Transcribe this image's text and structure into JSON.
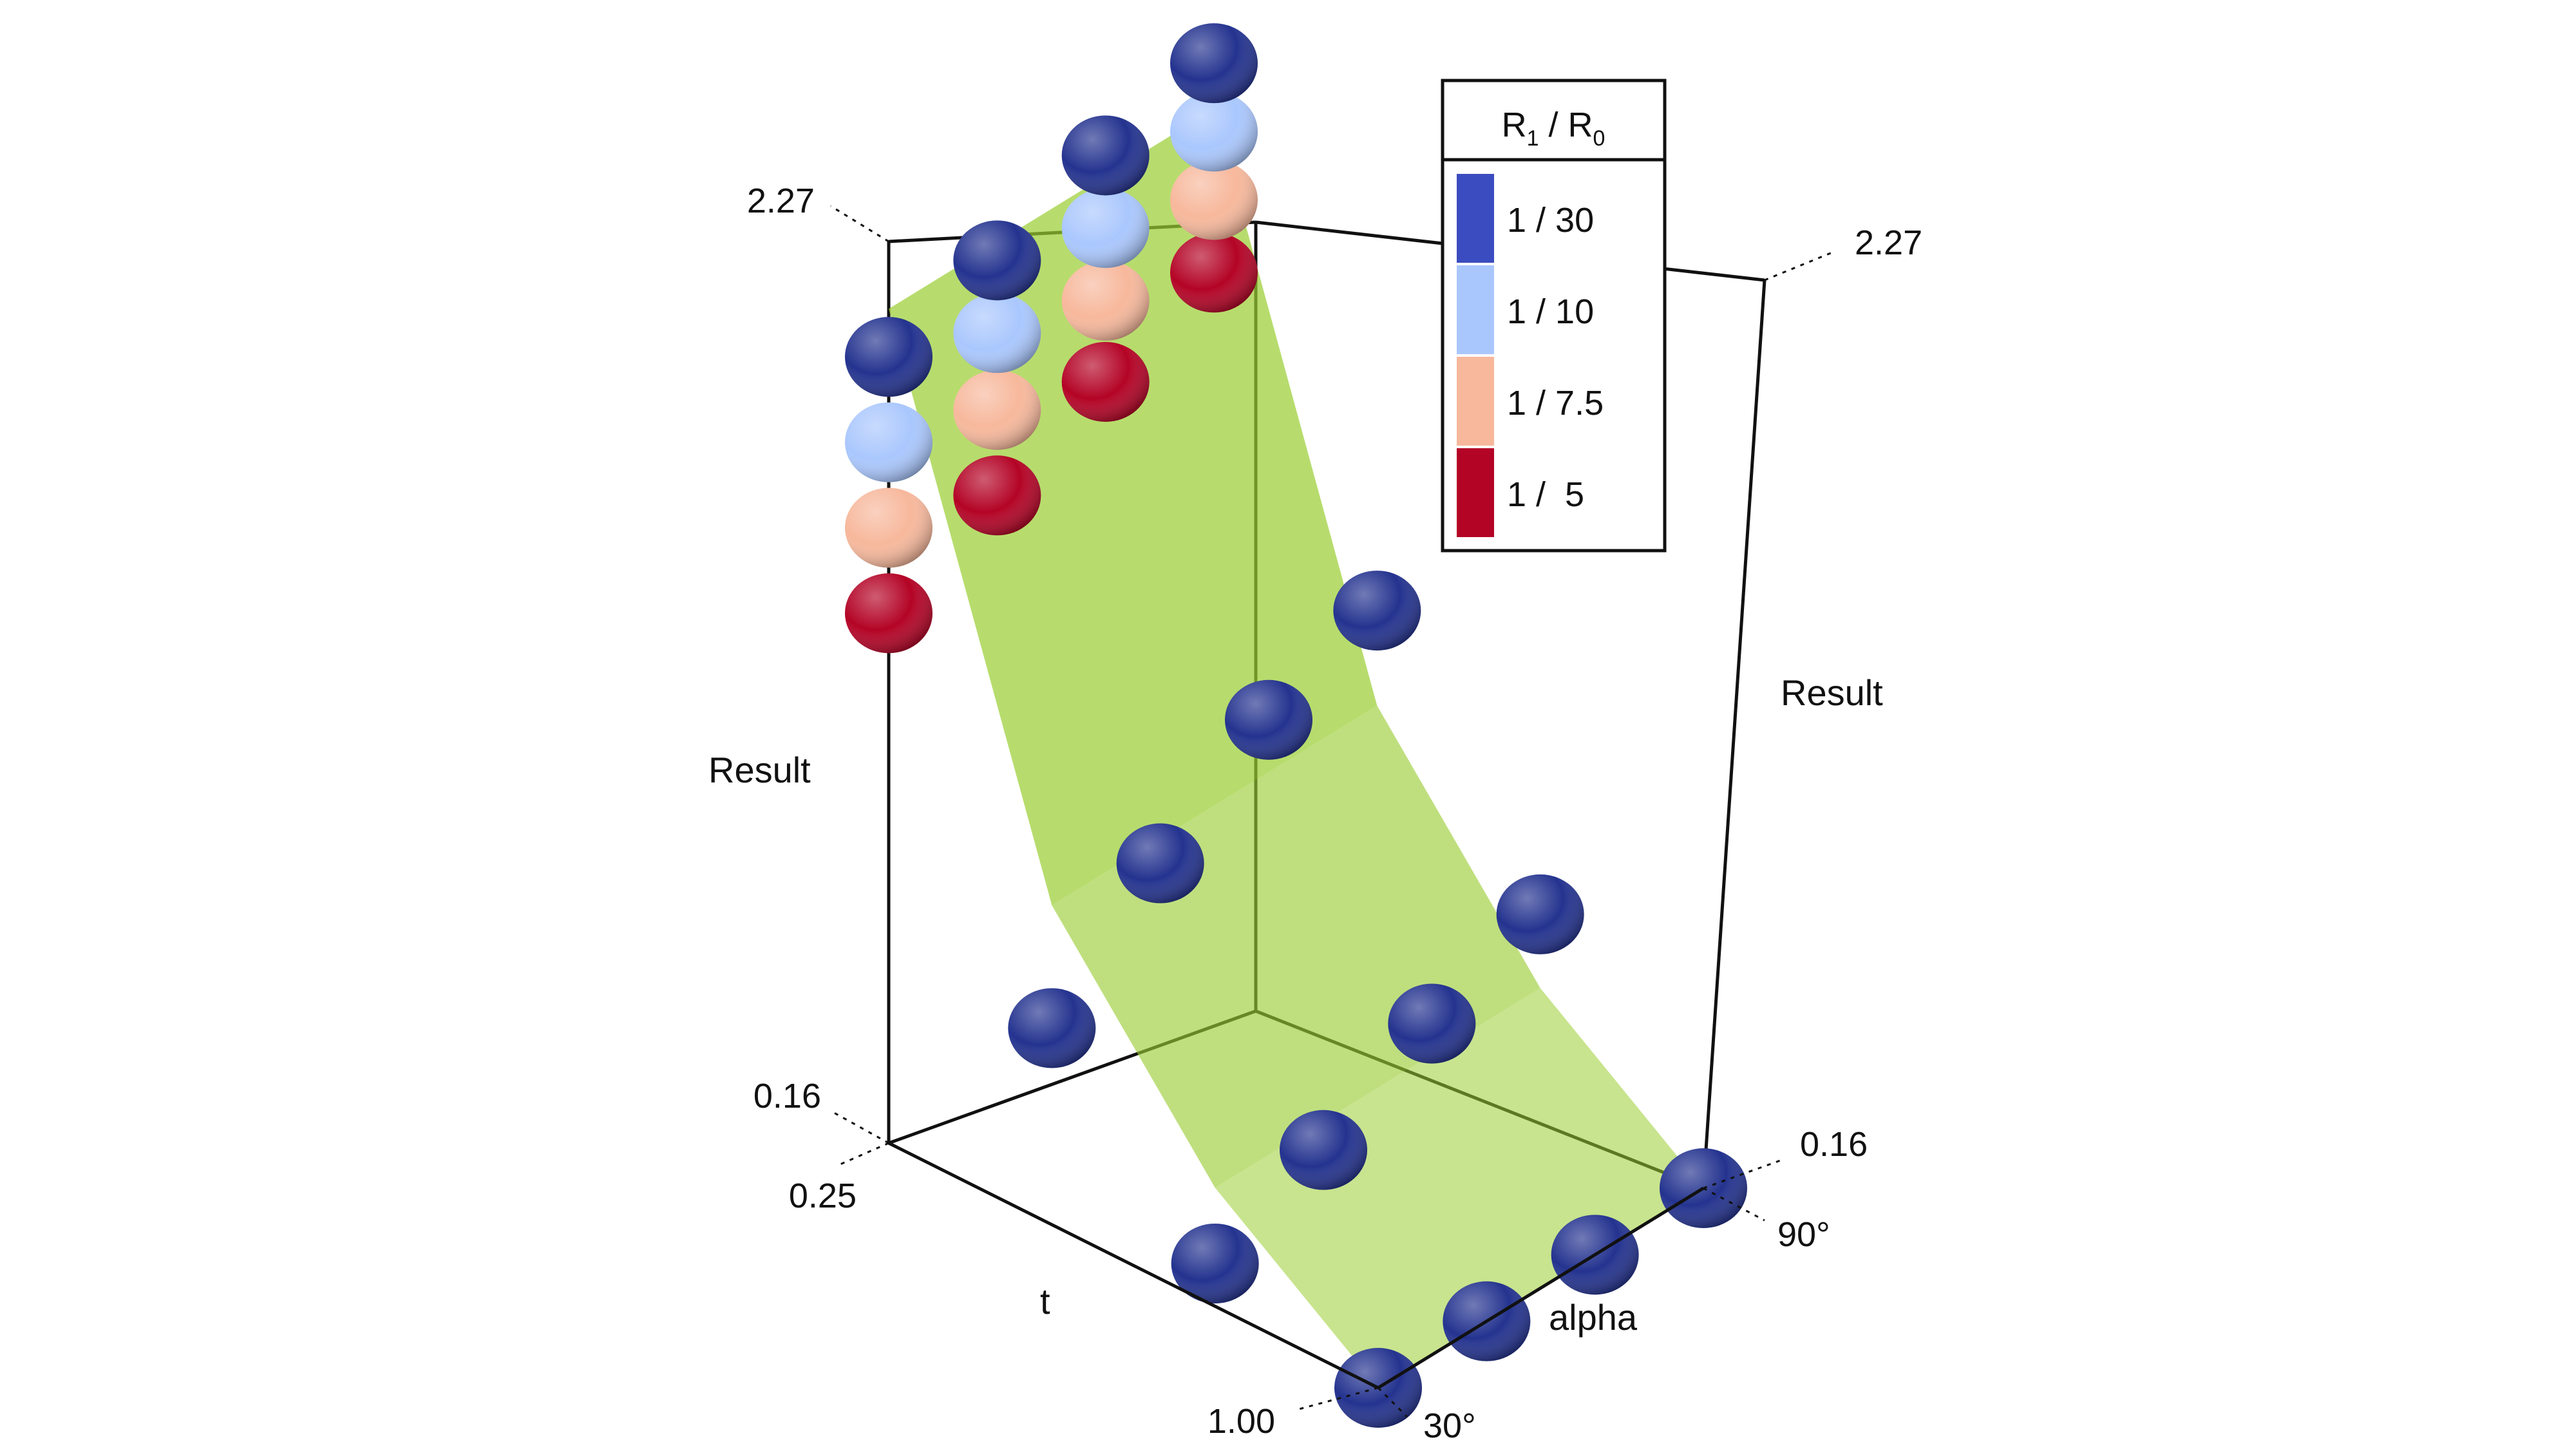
{
  "chart_data": {
    "type": "scatter",
    "subtype": "3d-scatter-with-surface",
    "axes": {
      "vertical_label_left": "Result",
      "vertical_label_right": "Result",
      "t_label": "t",
      "alpha_label": "alpha",
      "result_ticks": [
        "0.16",
        "2.27"
      ],
      "t_ticks": [
        "1.00",
        "0.25"
      ],
      "alpha_ticks": [
        "30°",
        "90°"
      ],
      "result_range": [
        0.16,
        2.27
      ],
      "t_range": [
        0.25,
        1.0
      ],
      "alpha_range": [
        30,
        90
      ]
    },
    "legend": {
      "title_main": "R",
      "title_sub1": "1",
      "title_sep": " / R",
      "title_sub0": "0",
      "placement": "top-right",
      "entries": [
        {
          "label": "1 / 30",
          "color": "#3b4cc0"
        },
        {
          "label": "1 / 10",
          "color": "#aac7fd"
        },
        {
          "label": "1 / 7.5",
          "color": "#f7b89c"
        },
        {
          "label": "1 /  5",
          "color": "#b40426"
        }
      ]
    },
    "surface_color": "#9acd32",
    "sphere_base_color": "#23328c",
    "points": [
      {
        "t": 0.25,
        "alpha": 30,
        "series": "1 / 30",
        "result": 2.0
      },
      {
        "t": 0.25,
        "alpha": 30,
        "series": "1 / 10",
        "result": 1.8
      },
      {
        "t": 0.25,
        "alpha": 30,
        "series": "1 / 7.5",
        "result": 1.6
      },
      {
        "t": 0.25,
        "alpha": 30,
        "series": "1 /  5",
        "result": 1.4
      },
      {
        "t": 0.25,
        "alpha": 50,
        "series": "1 / 30",
        "result": 2.07
      },
      {
        "t": 0.25,
        "alpha": 50,
        "series": "1 / 10",
        "result": 1.9
      },
      {
        "t": 0.25,
        "alpha": 50,
        "series": "1 / 7.5",
        "result": 1.72
      },
      {
        "t": 0.25,
        "alpha": 50,
        "series": "1 /  5",
        "result": 1.52
      },
      {
        "t": 0.25,
        "alpha": 70,
        "series": "1 / 30",
        "result": 2.16
      },
      {
        "t": 0.25,
        "alpha": 70,
        "series": "1 / 10",
        "result": 1.99
      },
      {
        "t": 0.25,
        "alpha": 70,
        "series": "1 / 7.5",
        "result": 1.82
      },
      {
        "t": 0.25,
        "alpha": 70,
        "series": "1 /  5",
        "result": 1.63
      },
      {
        "t": 0.25,
        "alpha": 90,
        "series": "1 / 30",
        "result": 2.22
      },
      {
        "t": 0.25,
        "alpha": 90,
        "series": "1 / 10",
        "result": 2.06
      },
      {
        "t": 0.25,
        "alpha": 90,
        "series": "1 / 7.5",
        "result": 1.9
      },
      {
        "t": 0.25,
        "alpha": 90,
        "series": "1 /  5",
        "result": 1.73
      },
      {
        "t": 0.5,
        "alpha": 30,
        "series": "1 / 30",
        "result": 0.62
      },
      {
        "t": 0.5,
        "alpha": 50,
        "series": "1 / 30",
        "result": 0.85
      },
      {
        "t": 0.5,
        "alpha": 70,
        "series": "1 / 30",
        "result": 1.03
      },
      {
        "t": 0.5,
        "alpha": 90,
        "series": "1 / 30",
        "result": 1.13
      },
      {
        "t": 0.75,
        "alpha": 30,
        "series": "1 / 30",
        "result": 0.26
      },
      {
        "t": 0.75,
        "alpha": 50,
        "series": "1 / 30",
        "result": 0.37
      },
      {
        "t": 0.75,
        "alpha": 70,
        "series": "1 / 30",
        "result": 0.51
      },
      {
        "t": 0.75,
        "alpha": 90,
        "series": "1 / 30",
        "result": 0.61
      },
      {
        "t": 1.0,
        "alpha": 30,
        "series": "1 / 30",
        "result": 0.16
      },
      {
        "t": 1.0,
        "alpha": 50,
        "series": "1 / 30",
        "result": 0.16
      },
      {
        "t": 1.0,
        "alpha": 70,
        "series": "1 / 30",
        "result": 0.16
      },
      {
        "t": 1.0,
        "alpha": 90,
        "series": "1 / 30",
        "result": 0.16
      }
    ]
  }
}
